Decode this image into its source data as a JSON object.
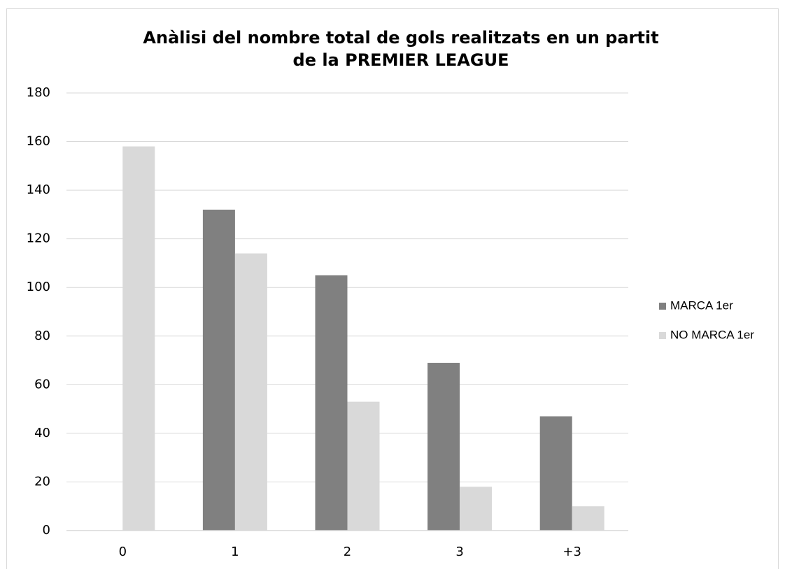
{
  "chart_data": {
    "type": "bar",
    "title": [
      "Anàlisi del nombre total de gols realitzats en un partit",
      "de la PREMIER LEAGUE"
    ],
    "categories": [
      "0",
      "1",
      "2",
      "3",
      "+3"
    ],
    "series": [
      {
        "name": "MARCA 1er",
        "color": "#808080",
        "values": [
          0,
          132,
          105,
          69,
          47
        ]
      },
      {
        "name": "NO MARCA 1er",
        "color": "#d9d9d9",
        "values": [
          158,
          114,
          53,
          18,
          10
        ]
      }
    ],
    "ylim": [
      0,
      180
    ],
    "yticks": [
      0,
      20,
      40,
      60,
      80,
      100,
      120,
      140,
      160,
      180
    ],
    "grid": true,
    "legend": "right"
  }
}
